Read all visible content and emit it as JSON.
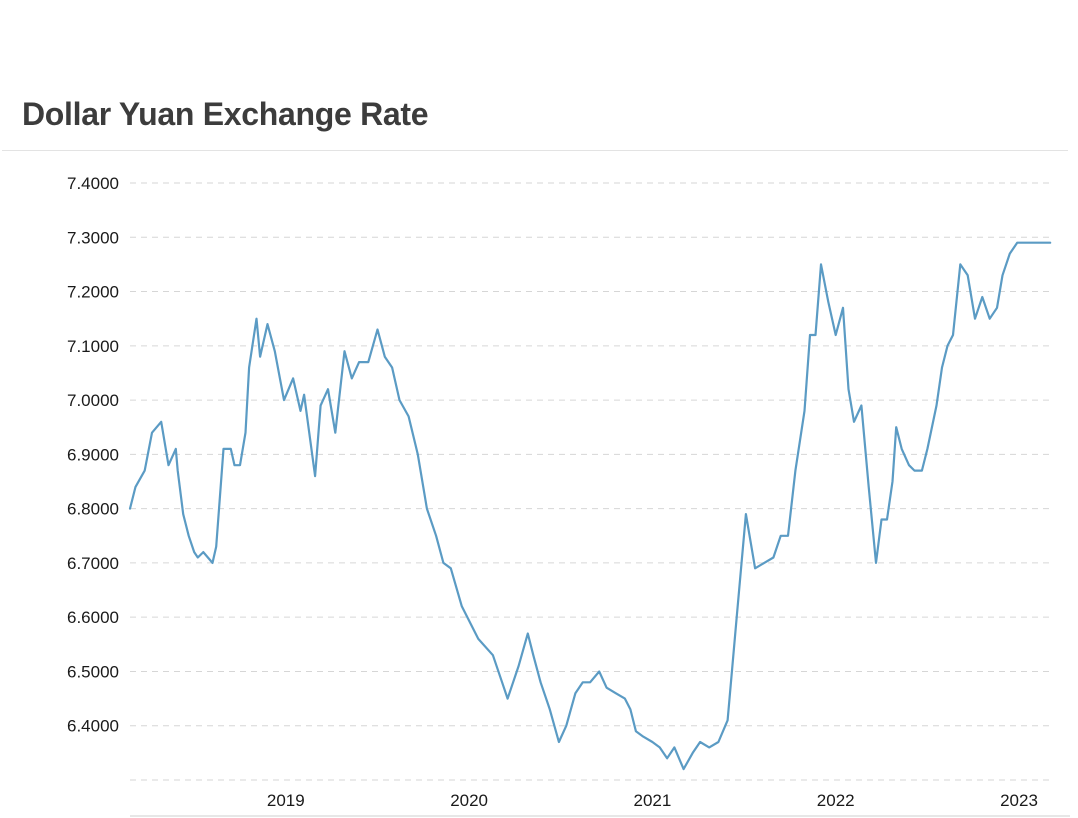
{
  "chart_data": {
    "type": "line",
    "title": "Dollar Yuan Exchange Rate",
    "xlabel": "",
    "ylabel": "",
    "ylim": [
      6.3,
      7.4
    ],
    "xlim": [
      2018.15,
      2023.18
    ],
    "y_ticks": [
      "7.4000",
      "7.3000",
      "7.2000",
      "7.1000",
      "7.0000",
      "6.9000",
      "6.8000",
      "6.7000",
      "6.6000",
      "6.5000",
      "6.4000"
    ],
    "x_ticks": [
      "2019",
      "2020",
      "2021",
      "2022",
      "2023"
    ],
    "grid": true,
    "line_color": "#5b9bc4",
    "series": [
      {
        "x": [
          2018.15,
          2018.18,
          2018.23,
          2018.27,
          2018.32,
          2018.36,
          2018.4,
          2018.41,
          2018.44,
          2018.47,
          2018.5,
          2018.52,
          2018.55,
          2018.6,
          2018.62,
          2018.66,
          2018.7,
          2018.72,
          2018.75,
          2018.78,
          2018.8,
          2018.84,
          2018.86,
          2018.9,
          2018.94,
          2018.99,
          2019.04,
          2019.08,
          2019.1,
          2019.16,
          2019.19,
          2019.23,
          2019.27,
          2019.32,
          2019.36,
          2019.4,
          2019.45,
          2019.5,
          2019.54,
          2019.58,
          2019.62,
          2019.67,
          2019.72,
          2019.77,
          2019.82,
          2019.86,
          2019.9,
          2019.96,
          2020.05,
          2020.13,
          2020.18,
          2020.21,
          2020.24,
          2020.27,
          2020.32,
          2020.35,
          2020.39,
          2020.44,
          2020.49,
          2020.53,
          2020.58,
          2020.62,
          2020.66,
          2020.71,
          2020.75,
          2020.8,
          2020.85,
          2020.88,
          2020.91,
          2020.95,
          2021.0,
          2021.04,
          2021.08,
          2021.12,
          2021.17,
          2021.22,
          2021.26,
          2021.31,
          2021.36,
          2021.41,
          2021.46,
          2021.51,
          2021.56,
          2021.61,
          2021.66,
          2021.7,
          2021.74,
          2021.78,
          2021.83,
          2021.86,
          2021.89,
          2021.92,
          2021.96,
          2022.0,
          2022.04,
          2022.07,
          2022.1,
          2022.14,
          2022.18,
          2022.22,
          2022.25,
          2022.28,
          2022.31,
          2022.33,
          2022.36,
          2022.4,
          2022.43,
          2022.47,
          2022.5,
          2022.55,
          2022.58,
          2022.61,
          2022.64,
          2022.68,
          2022.72,
          2022.76,
          2022.8,
          2022.84,
          2022.88,
          2022.91,
          2022.95,
          2022.99,
          2023.02,
          2023.05,
          2023.08,
          2023.11,
          2023.13,
          2023.15,
          2023.17
        ],
        "values": [
          6.8,
          6.84,
          6.87,
          6.94,
          6.96,
          6.88,
          6.91,
          6.87,
          6.79,
          6.75,
          6.72,
          6.71,
          6.72,
          6.7,
          6.73,
          6.91,
          6.91,
          6.88,
          6.88,
          6.94,
          7.06,
          7.15,
          7.08,
          7.14,
          7.09,
          7.0,
          7.04,
          6.98,
          7.01,
          6.86,
          6.99,
          7.02,
          6.94,
          7.09,
          7.04,
          7.07,
          7.07,
          7.13,
          7.08,
          7.06,
          7.0,
          6.97,
          6.9,
          6.8,
          6.75,
          6.7,
          6.69,
          6.62,
          6.56,
          6.53,
          6.48,
          6.45,
          6.48,
          6.51,
          6.57,
          6.53,
          6.48,
          6.43,
          6.37,
          6.4,
          6.46,
          6.48,
          6.48,
          6.5,
          6.47,
          6.46,
          6.45,
          6.43,
          6.39,
          6.38,
          6.37,
          6.36,
          6.34,
          6.36,
          6.32,
          6.35,
          6.37,
          6.36,
          6.37,
          6.41,
          6.6,
          6.79,
          6.69,
          6.7,
          6.71,
          6.75,
          6.75,
          6.87,
          6.98,
          7.12,
          7.12,
          7.25,
          7.18,
          7.12,
          7.17,
          7.02,
          6.96,
          6.99,
          6.84,
          6.7,
          6.78,
          6.78,
          6.85,
          6.95,
          6.91,
          6.88,
          6.87,
          6.87,
          6.91,
          6.99,
          7.06,
          7.1,
          7.12,
          7.25,
          7.23,
          7.15,
          7.19,
          7.15,
          7.17,
          7.23,
          7.27,
          7.29,
          7.29,
          7.29,
          7.29,
          7.29,
          7.29,
          7.29,
          7.29
        ]
      }
    ]
  }
}
